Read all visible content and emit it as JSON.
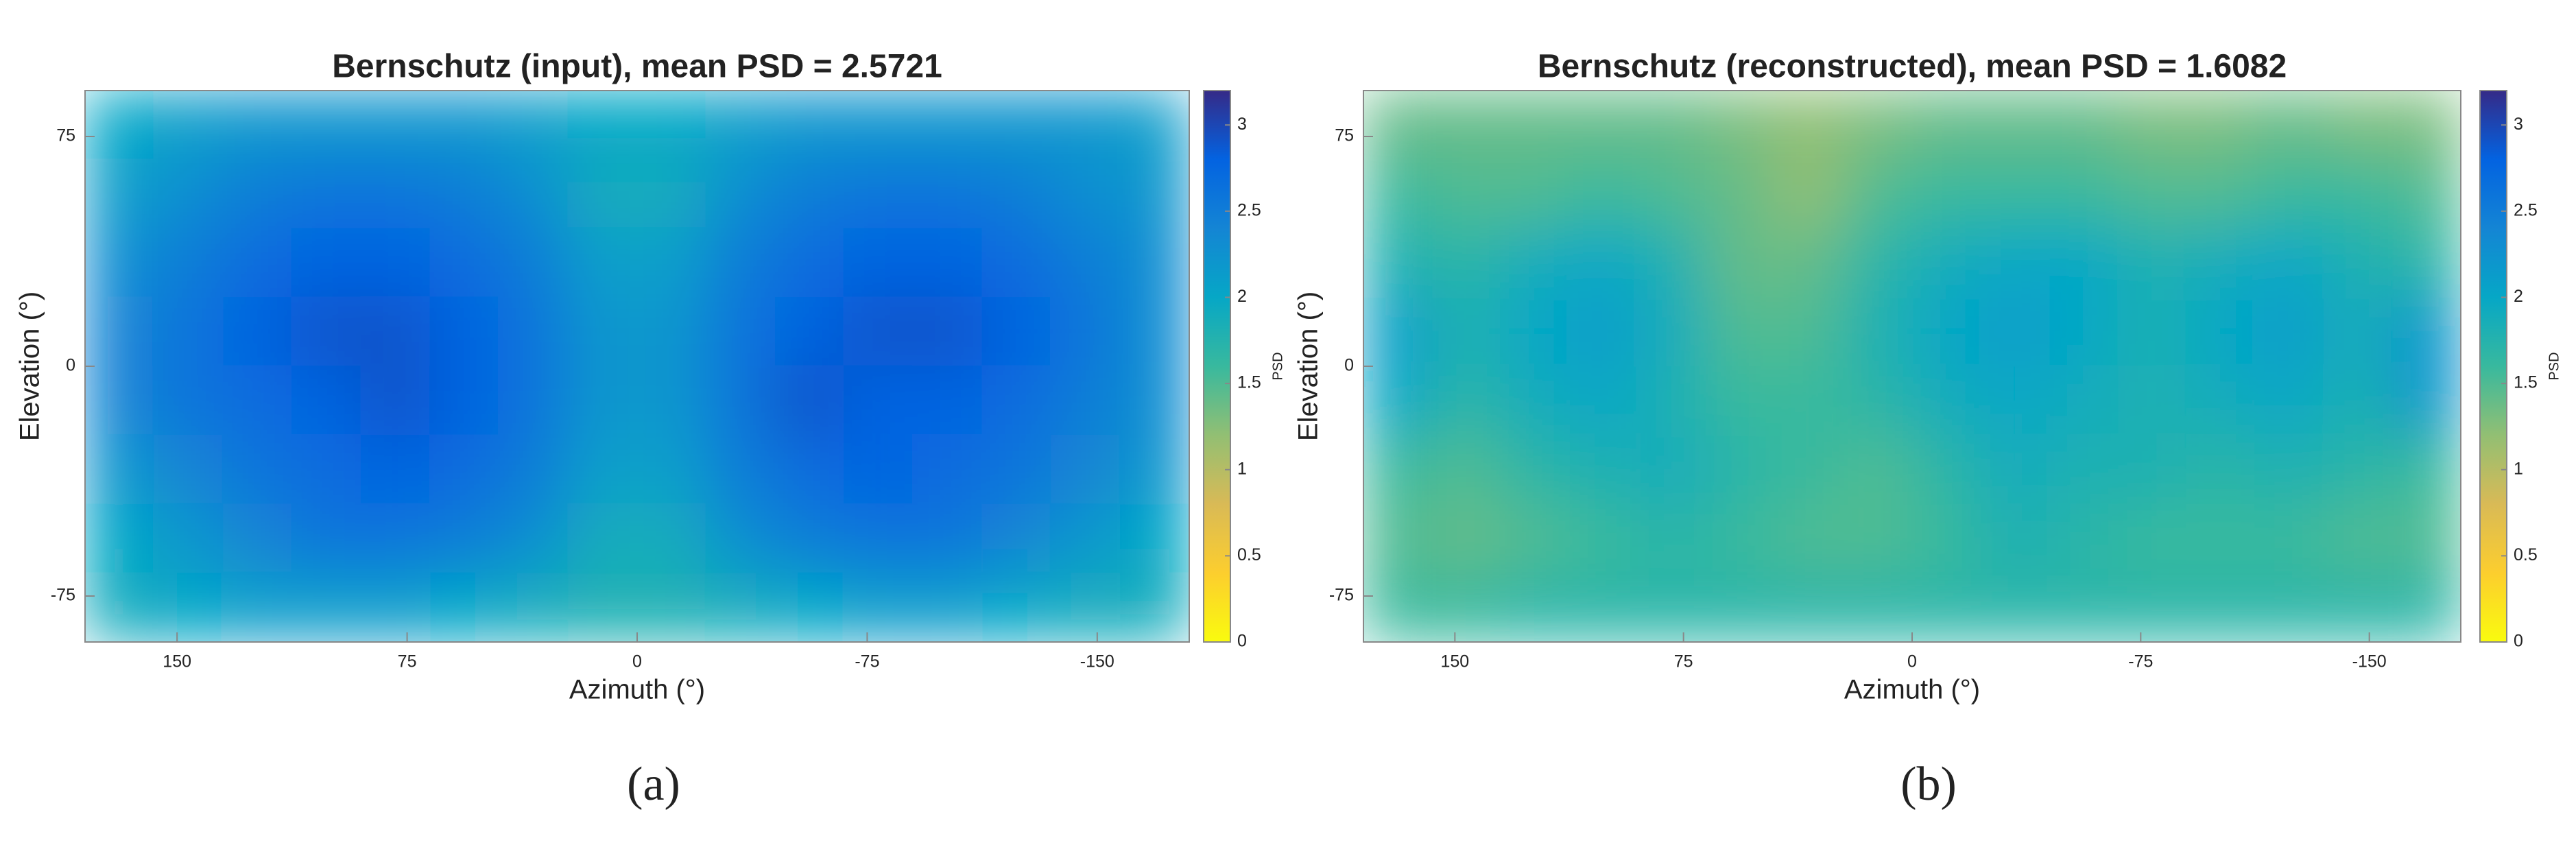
{
  "chart_data": [
    {
      "type": "heatmap",
      "title": "Bernschutz (input), mean PSD = 2.5721",
      "xlabel": "Azimuth (°)",
      "ylabel": "Elevation (°)",
      "caption": "(a)",
      "x": [
        168.75,
        146.25,
        123.75,
        101.25,
        78.75,
        56.25,
        33.75,
        11.25,
        -11.25,
        -33.75,
        -56.25,
        -78.75,
        -101.25,
        -123.75,
        -146.25,
        -168.75
      ],
      "y": [
        78.75,
        56.25,
        33.75,
        11.25,
        -11.25,
        -33.75,
        -56.25,
        -78.75
      ],
      "z": [
        [
          2.0,
          2.1,
          2.2,
          2.2,
          2.2,
          2.2,
          2.1,
          2.0,
          2.0,
          2.1,
          2.2,
          2.2,
          2.2,
          2.2,
          2.2,
          2.1
        ],
        [
          2.1,
          2.3,
          2.5,
          2.6,
          2.6,
          2.5,
          2.3,
          1.9,
          1.9,
          2.3,
          2.5,
          2.6,
          2.6,
          2.5,
          2.3,
          2.2
        ],
        [
          2.3,
          2.5,
          2.7,
          2.8,
          2.8,
          2.7,
          2.5,
          2.1,
          2.1,
          2.5,
          2.7,
          2.8,
          2.8,
          2.7,
          2.5,
          2.3
        ],
        [
          2.4,
          2.6,
          2.8,
          2.9,
          2.9,
          2.8,
          2.6,
          2.2,
          2.2,
          2.6,
          2.8,
          2.9,
          2.9,
          2.8,
          2.6,
          2.3
        ],
        [
          2.4,
          2.6,
          2.7,
          2.8,
          2.9,
          2.8,
          2.6,
          2.2,
          2.2,
          2.6,
          2.9,
          2.8,
          2.8,
          2.7,
          2.5,
          2.3
        ],
        [
          2.2,
          2.4,
          2.6,
          2.7,
          2.8,
          2.7,
          2.5,
          2.1,
          2.1,
          2.5,
          2.7,
          2.8,
          2.7,
          2.6,
          2.4,
          2.2
        ],
        [
          2.0,
          2.2,
          2.4,
          2.6,
          2.6,
          2.5,
          2.3,
          1.9,
          1.9,
          2.3,
          2.5,
          2.6,
          2.6,
          2.4,
          2.2,
          2.0
        ],
        [
          1.9,
          2.0,
          2.1,
          2.1,
          2.1,
          2.0,
          1.9,
          1.8,
          1.8,
          1.9,
          2.0,
          2.1,
          2.1,
          2.0,
          1.9,
          1.9
        ]
      ],
      "xlim": [
        180,
        -180
      ],
      "ylim": [
        -90,
        90
      ],
      "xticks": [
        150,
        75,
        0,
        -75,
        -150
      ],
      "yticks": [
        -75,
        0,
        75
      ],
      "clim": [
        0,
        3.2
      ],
      "cticks": [
        0,
        0.5,
        1,
        1.5,
        2,
        2.5,
        3
      ],
      "clabel": "PSD",
      "colormap": [
        "#f9fb0e",
        "#fcce2e",
        "#d9ba56",
        "#92bf73",
        "#38b99e",
        "#06a7c6",
        "#1485d4",
        "#0363e1",
        "#352a87"
      ]
    },
    {
      "type": "heatmap",
      "title": "Bernschutz (reconstructed), mean PSD = 1.6082",
      "xlabel": "Azimuth (°)",
      "ylabel": "Elevation (°)",
      "caption": "(b)",
      "x": [
        168.75,
        146.25,
        123.75,
        101.25,
        78.75,
        56.25,
        33.75,
        11.25,
        -11.25,
        -33.75,
        -56.25,
        -78.75,
        -101.25,
        -123.75,
        -146.25,
        -168.75
      ],
      "y": [
        78.75,
        56.25,
        33.75,
        11.25,
        -11.25,
        -33.75,
        -56.25,
        -78.75
      ],
      "z": [
        [
          1.4,
          1.4,
          1.4,
          1.4,
          1.4,
          1.3,
          1.2,
          1.3,
          1.4,
          1.4,
          1.4,
          1.3,
          1.3,
          1.4,
          1.3,
          1.3
        ],
        [
          1.6,
          1.5,
          1.5,
          1.6,
          1.5,
          1.4,
          1.2,
          1.5,
          1.6,
          1.6,
          1.6,
          1.5,
          1.5,
          1.6,
          1.6,
          1.5
        ],
        [
          1.8,
          1.7,
          1.9,
          2.0,
          1.8,
          1.4,
          1.4,
          1.7,
          1.9,
          2.0,
          2.0,
          1.8,
          1.9,
          2.0,
          1.8,
          1.7
        ],
        [
          2.1,
          1.8,
          2.0,
          2.1,
          1.9,
          1.5,
          1.5,
          1.8,
          2.0,
          2.1,
          2.0,
          1.8,
          2.0,
          2.1,
          1.9,
          2.2
        ],
        [
          2.0,
          1.7,
          1.9,
          2.0,
          1.8,
          1.6,
          1.6,
          1.7,
          1.9,
          2.0,
          1.9,
          1.8,
          1.9,
          2.0,
          1.8,
          2.2
        ],
        [
          1.6,
          1.5,
          1.7,
          1.8,
          1.9,
          1.7,
          1.6,
          1.5,
          1.7,
          1.9,
          1.8,
          1.8,
          1.7,
          1.8,
          1.7,
          1.6
        ],
        [
          1.5,
          1.4,
          1.5,
          1.6,
          1.7,
          1.6,
          1.5,
          1.5,
          1.6,
          1.8,
          1.7,
          1.6,
          1.6,
          1.6,
          1.5,
          1.5
        ],
        [
          1.6,
          1.6,
          1.7,
          1.7,
          1.7,
          1.7,
          1.7,
          1.7,
          1.7,
          1.7,
          1.7,
          1.7,
          1.7,
          1.7,
          1.7,
          1.7
        ]
      ],
      "xlim": [
        180,
        -180
      ],
      "ylim": [
        -90,
        90
      ],
      "xticks": [
        150,
        75,
        0,
        -75,
        -150
      ],
      "yticks": [
        -75,
        0,
        75
      ],
      "clim": [
        0,
        3.2
      ],
      "cticks": [
        0,
        0.5,
        1,
        1.5,
        2,
        2.5,
        3
      ],
      "clabel": "PSD",
      "colormap": [
        "#f9fb0e",
        "#fcce2e",
        "#d9ba56",
        "#92bf73",
        "#38b99e",
        "#06a7c6",
        "#1485d4",
        "#0363e1",
        "#352a87"
      ]
    }
  ]
}
